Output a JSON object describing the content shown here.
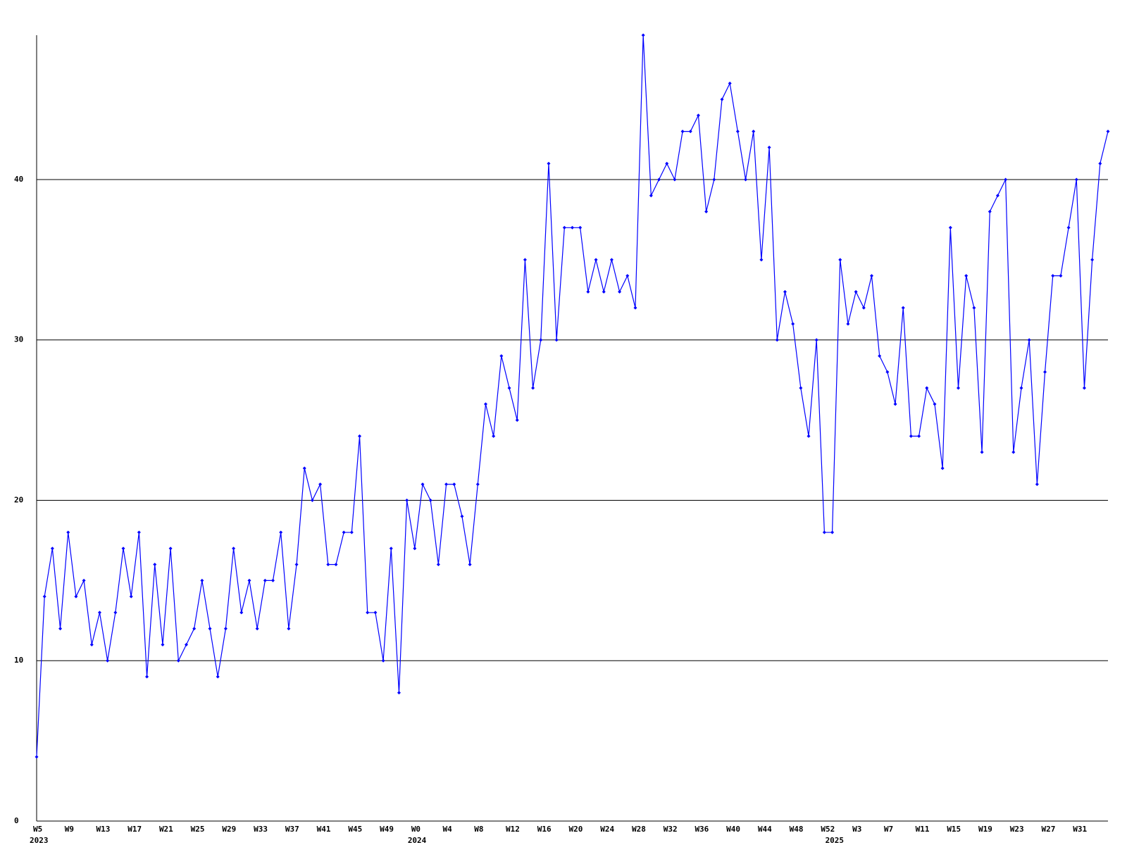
{
  "chart_data": {
    "type": "line",
    "categories": [
      "W5",
      null,
      null,
      null,
      "W9",
      null,
      null,
      null,
      "W13",
      null,
      null,
      null,
      "W17",
      null,
      null,
      null,
      "W21",
      null,
      null,
      null,
      "W25",
      null,
      null,
      null,
      "W29",
      null,
      null,
      null,
      "W33",
      null,
      null,
      null,
      "W37",
      null,
      null,
      null,
      "W41",
      null,
      null,
      null,
      "W45",
      null,
      null,
      null,
      "W49",
      null,
      null,
      null,
      "W0",
      null,
      null,
      null,
      "W4",
      null,
      null,
      null,
      "W8",
      null,
      null,
      null,
      "W12",
      null,
      null,
      null,
      "W16",
      null,
      null,
      null,
      "W20",
      null,
      null,
      null,
      "W24",
      null,
      null,
      null,
      "W28",
      null,
      null,
      null,
      "W32",
      null,
      null,
      null,
      "W36",
      null,
      null,
      null,
      "W40",
      null,
      null,
      null,
      "W44",
      null,
      null,
      null,
      "W48",
      null,
      null,
      null,
      "W52",
      null,
      null,
      null,
      "W3",
      null,
      null,
      null,
      "W7",
      null,
      null,
      null,
      "W11",
      null,
      null,
      null,
      "W15",
      null,
      null,
      null,
      "W19",
      null,
      null,
      null,
      "W23",
      null,
      null,
      null,
      "W27",
      null,
      null,
      null,
      "W31",
      null,
      null,
      null,
      null
    ],
    "category_years": [
      "2023",
      null,
      null,
      null,
      null,
      null,
      null,
      null,
      null,
      null,
      null,
      null,
      null,
      null,
      null,
      null,
      null,
      null,
      null,
      null,
      null,
      null,
      null,
      null,
      null,
      null,
      null,
      null,
      null,
      null,
      null,
      null,
      null,
      null,
      null,
      null,
      null,
      null,
      null,
      null,
      null,
      null,
      null,
      null,
      null,
      null,
      null,
      null,
      "2024",
      null,
      null,
      null,
      null,
      null,
      null,
      null,
      null,
      null,
      null,
      null,
      null,
      null,
      null,
      null,
      null,
      null,
      null,
      null,
      null,
      null,
      null,
      null,
      null,
      null,
      null,
      null,
      null,
      null,
      null,
      null,
      null,
      null,
      null,
      null,
      null,
      null,
      null,
      null,
      null,
      null,
      null,
      null,
      null,
      null,
      null,
      null,
      null,
      null,
      null,
      null,
      null,
      "2025",
      null,
      null,
      null,
      null,
      null,
      null,
      null,
      null,
      null,
      null,
      null,
      null,
      null,
      null,
      null,
      null,
      null,
      null,
      null,
      null,
      null,
      null,
      null,
      null,
      null,
      null,
      null,
      null,
      null,
      null,
      null,
      null,
      null,
      null,
      null
    ],
    "series": [
      {
        "color": "#0000ff",
        "values": [
          4,
          14,
          17,
          12,
          18,
          14,
          15,
          11,
          13,
          10,
          13,
          17,
          14,
          18,
          9,
          16,
          11,
          17,
          10,
          11,
          12,
          15,
          12,
          9,
          12,
          17,
          13,
          15,
          12,
          15,
          15,
          18,
          12,
          16,
          22,
          20,
          21,
          16,
          16,
          18,
          18,
          24,
          13,
          13,
          10,
          17,
          8,
          20,
          17,
          21,
          20,
          16,
          21,
          21,
          19,
          16,
          21,
          26,
          24,
          29,
          27,
          25,
          35,
          27,
          30,
          41,
          30,
          37,
          37,
          37,
          33,
          35,
          33,
          35,
          33,
          34,
          32,
          49,
          39,
          40,
          41,
          40,
          43,
          43,
          44,
          38,
          40,
          45,
          46,
          43,
          40,
          43,
          35,
          42,
          30,
          33,
          31,
          27,
          24,
          30,
          18,
          18,
          35,
          31,
          33,
          32,
          34,
          29,
          28,
          26,
          32,
          24,
          24,
          27,
          26,
          22,
          37,
          27,
          34,
          32,
          23,
          38,
          39,
          40,
          23,
          27,
          30,
          21,
          28,
          34,
          34,
          37,
          40,
          27,
          35,
          41,
          43
        ]
      }
    ],
    "ylim": [
      0,
      49
    ],
    "yticks": [
      0,
      10,
      20,
      30,
      40
    ],
    "grid": true
  }
}
